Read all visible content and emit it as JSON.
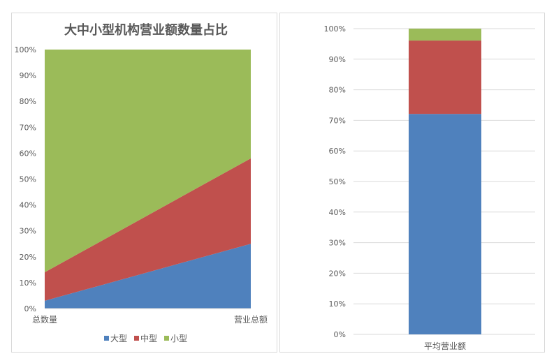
{
  "chart_data": [
    {
      "type": "area",
      "stacked": "percent",
      "title": "大中小型机构营业额数量占比",
      "categories": [
        "总数量",
        "营业总额"
      ],
      "series": [
        {
          "name": "大型",
          "values": [
            3,
            25
          ],
          "color": "#4f81bd"
        },
        {
          "name": "中型",
          "values": [
            11,
            33
          ],
          "color": "#c0504d"
        },
        {
          "name": "小型",
          "values": [
            86,
            42
          ],
          "color": "#9bbb59"
        }
      ],
      "yticks": [
        "0%",
        "10%",
        "20%",
        "30%",
        "40%",
        "50%",
        "60%",
        "70%",
        "80%",
        "90%",
        "100%"
      ],
      "ylim": [
        0,
        100
      ],
      "grid": false,
      "legend": "bottom"
    },
    {
      "type": "bar",
      "stacked": "percent",
      "categories": [
        "平均营业额"
      ],
      "series": [
        {
          "values": [
            72.1
          ],
          "color": "#4f81bd"
        },
        {
          "values": [
            24.0
          ],
          "color": "#c0504d"
        },
        {
          "values": [
            3.9
          ],
          "color": "#9bbb59"
        }
      ],
      "yticks": [
        "0%",
        "10%",
        "20%",
        "30%",
        "40%",
        "50%",
        "60%",
        "70%",
        "80%",
        "90%",
        "100%"
      ],
      "ylim": [
        0,
        100
      ],
      "grid": true
    }
  ]
}
